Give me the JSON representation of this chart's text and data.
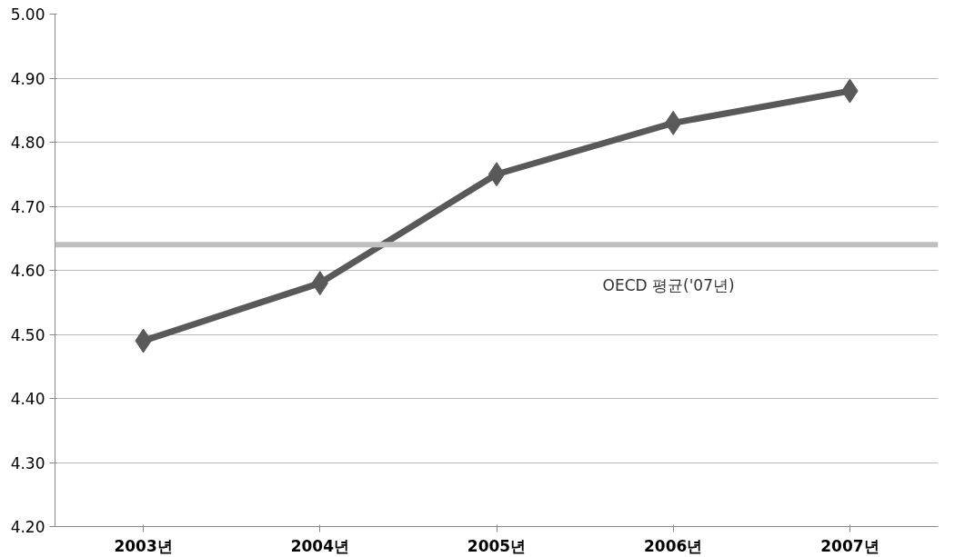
{
  "chart_data": {
    "type": "line",
    "categories": [
      "2003년",
      "2004년",
      "2005년",
      "2006년",
      "2007년"
    ],
    "series": [
      {
        "color": "#595959",
        "values": [
          4.49,
          4.58,
          4.75,
          4.83,
          4.88
        ]
      }
    ],
    "ylim": [
      4.2,
      5.0
    ],
    "yticks": [
      {
        "value": 4.2,
        "label": "4.20"
      },
      {
        "value": 4.3,
        "label": "4.30"
      },
      {
        "value": 4.4,
        "label": "4.40"
      },
      {
        "value": 4.5,
        "label": "4.50"
      },
      {
        "value": 4.6,
        "label": "4.60"
      },
      {
        "value": 4.7,
        "label": "4.70"
      },
      {
        "value": 4.8,
        "label": "4.80"
      },
      {
        "value": 4.9,
        "label": "4.90"
      },
      {
        "value": 5.0,
        "label": "5.00"
      }
    ],
    "ref_lines": [
      {
        "axis": "y",
        "value": 4.64,
        "label": "OECD 평균('07년)",
        "color": "#bfbfbf"
      }
    ],
    "grid": "y",
    "marker": "diamond",
    "line_style": "solid"
  }
}
